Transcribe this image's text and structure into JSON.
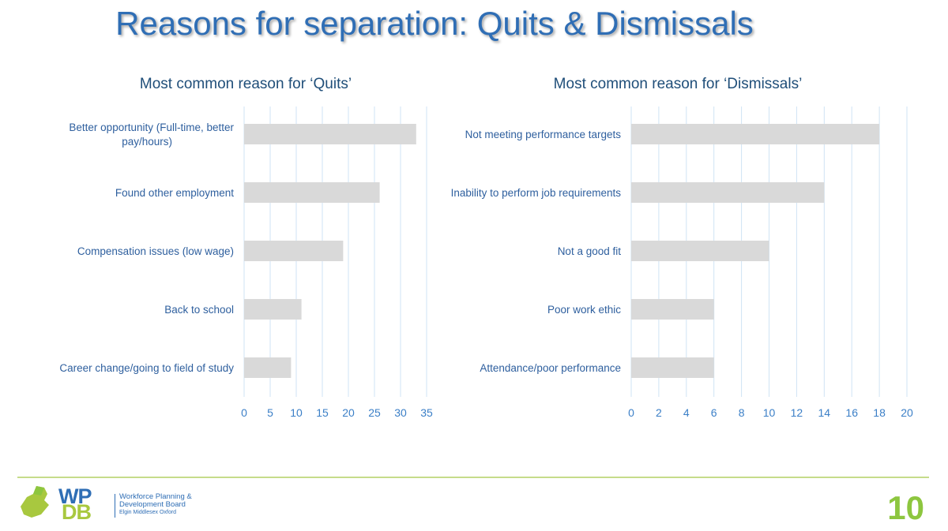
{
  "slide": {
    "title": "Reasons for separation: Quits & Dismissals",
    "page_number": "10"
  },
  "logo": {
    "letters_top": "WP",
    "letters_bottom": "DB",
    "line1": "Workforce Planning &",
    "line2": "Development Board",
    "line3": "Elgin Middlesex Oxford"
  },
  "colors": {
    "bar": "#d9d9d9",
    "title": "#2f6eb5",
    "accent_green": "#8dc63f"
  },
  "chart_data": [
    {
      "type": "bar",
      "orientation": "horizontal",
      "title": "Most common reason for ‘Quits’",
      "categories": [
        [
          "Better opportunity (Full-time, better",
          "pay/hours)"
        ],
        [
          "Found other employment"
        ],
        [
          "Compensation issues (low wage)"
        ],
        [
          "Back to school"
        ],
        [
          "Career change/going to field of study"
        ]
      ],
      "values": [
        33,
        26,
        19,
        11,
        9
      ],
      "xlim": [
        0,
        35
      ],
      "ticks": [
        0,
        5,
        10,
        15,
        20,
        25,
        30,
        35
      ],
      "grid": true
    },
    {
      "type": "bar",
      "orientation": "horizontal",
      "title": "Most common reason for ‘Dismissals’",
      "categories": [
        [
          "Not meeting performance targets"
        ],
        [
          "Inability to perform job requirements"
        ],
        [
          "Not a good fit"
        ],
        [
          "Poor work ethic"
        ],
        [
          "Attendance/poor performance"
        ]
      ],
      "values": [
        18,
        14,
        10,
        6,
        6
      ],
      "xlim": [
        0,
        20
      ],
      "ticks": [
        0,
        2,
        4,
        6,
        8,
        10,
        12,
        14,
        16,
        18,
        20
      ],
      "grid": true
    }
  ]
}
